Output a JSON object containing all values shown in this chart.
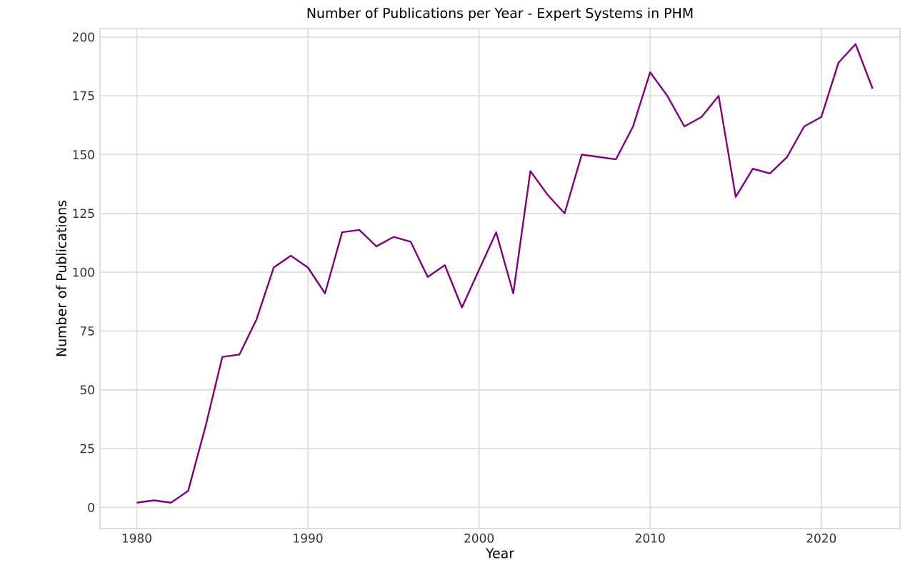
{
  "chart_data": {
    "type": "line",
    "title": "Number of Publications per Year - Expert Systems in PHM",
    "xlabel": "Year",
    "ylabel": "Number of Publications",
    "x": [
      1980,
      1981,
      1982,
      1983,
      1984,
      1985,
      1986,
      1987,
      1988,
      1989,
      1990,
      1991,
      1992,
      1993,
      1994,
      1995,
      1996,
      1997,
      1998,
      1999,
      2000,
      2001,
      2002,
      2003,
      2004,
      2005,
      2006,
      2007,
      2008,
      2009,
      2010,
      2011,
      2012,
      2013,
      2014,
      2015,
      2016,
      2017,
      2018,
      2019,
      2020,
      2021,
      2022,
      2023
    ],
    "values": [
      2,
      3,
      2,
      7,
      34,
      64,
      65,
      80,
      102,
      107,
      102,
      91,
      117,
      118,
      111,
      115,
      113,
      98,
      103,
      85,
      101,
      117,
      91,
      143,
      133,
      125,
      150,
      149,
      148,
      162,
      185,
      175,
      162,
      166,
      175,
      132,
      144,
      142,
      149,
      162,
      166,
      189,
      197,
      178
    ],
    "color": "#800080",
    "xlim": [
      1977.85,
      2024.6
    ],
    "ylim": [
      -9,
      203.6
    ],
    "xticks": [
      1980,
      1990,
      2000,
      2010,
      2020
    ],
    "yticks": [
      0,
      25,
      50,
      75,
      100,
      125,
      150,
      175,
      200
    ],
    "grid": true,
    "line_style": "solid",
    "marker": "none"
  }
}
